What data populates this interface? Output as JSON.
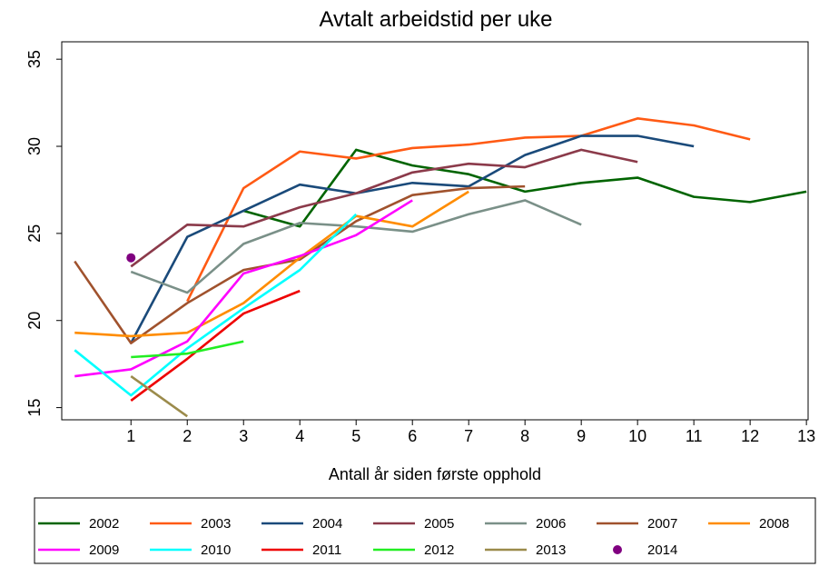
{
  "chart_data": {
    "type": "line",
    "title": "Avtalt arbeidstid per uke",
    "x_label": "Antall år siden første opphold",
    "x": [
      0,
      1,
      2,
      3,
      4,
      5,
      6,
      7,
      8,
      9,
      10,
      11,
      12,
      13
    ],
    "xlim": [
      -0.23,
      13.03
    ],
    "xticks": [
      1,
      2,
      3,
      4,
      5,
      6,
      7,
      8,
      9,
      10,
      11,
      12,
      13
    ],
    "ylim": [
      14.3,
      36
    ],
    "yticks": [
      15,
      20,
      25,
      30,
      35
    ],
    "grid": false,
    "legend": "bottom",
    "series": [
      {
        "name": "2002",
        "color": "#006400",
        "values": [
          null,
          null,
          null,
          26.3,
          25.4,
          29.8,
          28.9,
          28.4,
          27.4,
          27.9,
          28.2,
          27.1,
          26.8,
          27.4
        ]
      },
      {
        "name": "2003",
        "color": "#ff5a14",
        "values": [
          null,
          null,
          21.1,
          27.6,
          29.7,
          29.3,
          29.9,
          30.1,
          30.5,
          30.6,
          31.6,
          31.2,
          30.4,
          null
        ]
      },
      {
        "name": "2004",
        "color": "#1a4a7a",
        "values": [
          null,
          18.7,
          24.8,
          26.3,
          27.8,
          27.3,
          27.9,
          27.7,
          29.5,
          30.6,
          30.6,
          30.0,
          null,
          null
        ]
      },
      {
        "name": "2005",
        "color": "#8b3a4a",
        "values": [
          null,
          23.1,
          25.5,
          25.4,
          26.5,
          27.3,
          28.5,
          29.0,
          28.8,
          29.8,
          29.1,
          null,
          null,
          null
        ]
      },
      {
        "name": "2006",
        "color": "#7a9088",
        "values": [
          null,
          22.8,
          21.6,
          24.4,
          25.6,
          25.4,
          25.1,
          26.1,
          26.9,
          25.5,
          null,
          null,
          null,
          null
        ]
      },
      {
        "name": "2007",
        "color": "#a0522d",
        "values": [
          23.4,
          18.7,
          21.0,
          22.9,
          23.5,
          25.7,
          27.2,
          27.6,
          27.7,
          null,
          null,
          null,
          null,
          null
        ]
      },
      {
        "name": "2008",
        "color": "#ff8c00",
        "values": [
          19.3,
          19.1,
          19.3,
          21.0,
          23.6,
          26.0,
          25.4,
          27.4,
          null,
          null,
          null,
          null,
          null,
          null
        ]
      },
      {
        "name": "2009",
        "color": "#ff00ff",
        "values": [
          16.8,
          17.2,
          18.8,
          22.7,
          23.7,
          24.9,
          26.9,
          null,
          null,
          null,
          null,
          null,
          null,
          null
        ]
      },
      {
        "name": "2010",
        "color": "#00ffff",
        "values": [
          18.3,
          15.7,
          18.4,
          20.7,
          22.9,
          26.1,
          null,
          null,
          null,
          null,
          null,
          null,
          null,
          null
        ]
      },
      {
        "name": "2011",
        "color": "#ee0000",
        "values": [
          null,
          15.4,
          17.8,
          20.4,
          21.7,
          null,
          null,
          null,
          null,
          null,
          null,
          null,
          null,
          null
        ]
      },
      {
        "name": "2012",
        "color": "#22ee22",
        "values": [
          null,
          17.9,
          18.1,
          18.8,
          null,
          null,
          null,
          null,
          null,
          null,
          null,
          null,
          null,
          null
        ]
      },
      {
        "name": "2013",
        "color": "#9b8b4b",
        "values": [
          null,
          16.8,
          14.5,
          null,
          null,
          null,
          null,
          null,
          null,
          null,
          null,
          null,
          null,
          null
        ]
      },
      {
        "name": "2014",
        "color": "#800080",
        "style": "marker",
        "values": [
          null,
          23.6,
          null,
          null,
          null,
          null,
          null,
          null,
          null,
          null,
          null,
          null,
          null,
          null
        ]
      }
    ]
  }
}
